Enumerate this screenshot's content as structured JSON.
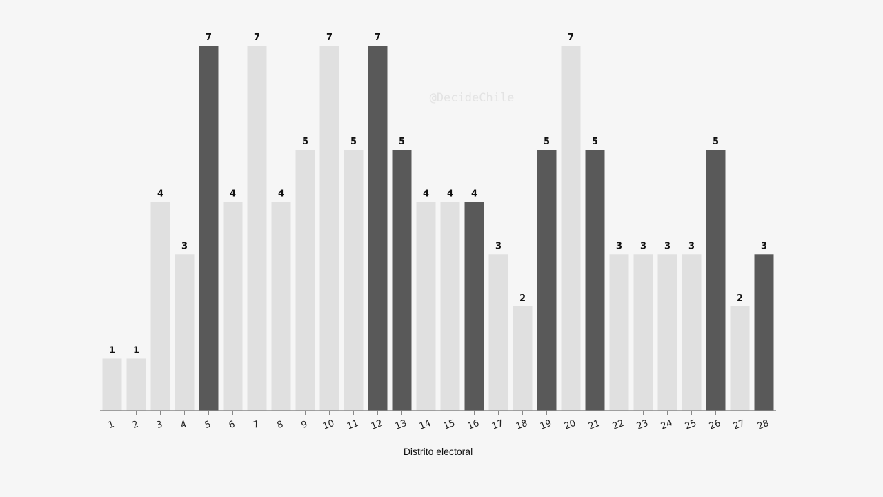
{
  "chart_data": {
    "type": "bar",
    "title": "",
    "xlabel": "Distrito electoral",
    "ylabel": "",
    "ylim": [
      0,
      7
    ],
    "grid": false,
    "legend": "none",
    "categories": [
      "1",
      "2",
      "3",
      "4",
      "5",
      "6",
      "7",
      "8",
      "9",
      "10",
      "11",
      "12",
      "13",
      "14",
      "15",
      "16",
      "17",
      "18",
      "19",
      "20",
      "21",
      "22",
      "23",
      "24",
      "25",
      "26",
      "27",
      "28"
    ],
    "values": [
      1,
      1,
      4,
      3,
      7,
      4,
      7,
      4,
      5,
      7,
      5,
      7,
      5,
      4,
      4,
      4,
      3,
      2,
      5,
      7,
      5,
      3,
      3,
      3,
      3,
      5,
      2,
      3
    ],
    "highlighted": [
      false,
      false,
      false,
      false,
      true,
      false,
      false,
      false,
      false,
      false,
      false,
      true,
      true,
      false,
      false,
      true,
      false,
      false,
      true,
      false,
      true,
      false,
      false,
      false,
      false,
      true,
      false,
      true
    ],
    "colors": {
      "default": "#e0e0e0",
      "highlight": "#595959",
      "axis": "#888888"
    }
  },
  "watermark": "@DecideChile"
}
